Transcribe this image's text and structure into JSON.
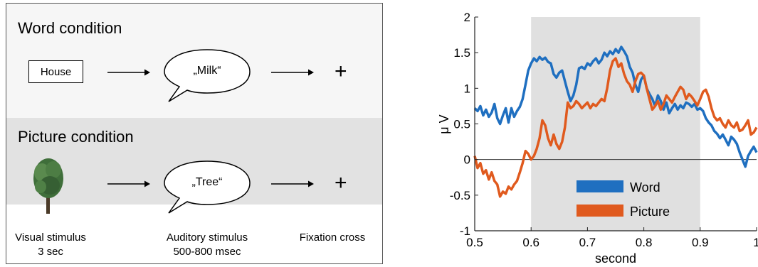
{
  "paradigm": {
    "word_condition": {
      "title": "Word condition",
      "visual_word": "House",
      "auditory_word": "„Milk“",
      "fixation": "+"
    },
    "picture_condition": {
      "title": "Picture condition",
      "picture_icon": "tree-image",
      "auditory_word": "„Tree“",
      "fixation": "+"
    },
    "labels": {
      "visual_line1": "Visual stimulus",
      "visual_line2": "3 sec",
      "auditory_line1": "Auditory stimulus",
      "auditory_line2": "500-800 msec",
      "fixation_line1": "Fixation cross"
    }
  },
  "chart_data": {
    "type": "line",
    "xlabel": "second",
    "ylabel": "μ V",
    "xlim": [
      0.5,
      1.0
    ],
    "ylim": [
      -1,
      2
    ],
    "x_ticks": [
      "0.5",
      "0.6",
      "0.7",
      "0.8",
      "0.9",
      "1"
    ],
    "y_ticks": [
      "-1",
      "-0.5",
      "0",
      "0.5",
      "1",
      "1.5",
      "2"
    ],
    "shaded_region": [
      0.6,
      0.9
    ],
    "shade_color": "#e0e0e0",
    "grid": false,
    "legend_position": "bottom-center",
    "series": [
      {
        "name": "Word",
        "color": "#1f6fc0",
        "x": [
          0.5,
          0.505,
          0.51,
          0.515,
          0.52,
          0.525,
          0.53,
          0.535,
          0.54,
          0.545,
          0.55,
          0.555,
          0.56,
          0.565,
          0.57,
          0.575,
          0.58,
          0.585,
          0.59,
          0.595,
          0.6,
          0.605,
          0.61,
          0.615,
          0.62,
          0.625,
          0.63,
          0.635,
          0.64,
          0.645,
          0.65,
          0.655,
          0.66,
          0.665,
          0.67,
          0.675,
          0.68,
          0.685,
          0.69,
          0.695,
          0.7,
          0.705,
          0.71,
          0.715,
          0.72,
          0.725,
          0.73,
          0.735,
          0.74,
          0.745,
          0.75,
          0.755,
          0.76,
          0.765,
          0.77,
          0.775,
          0.78,
          0.785,
          0.79,
          0.795,
          0.8,
          0.805,
          0.81,
          0.815,
          0.82,
          0.825,
          0.83,
          0.835,
          0.84,
          0.845,
          0.85,
          0.855,
          0.86,
          0.865,
          0.87,
          0.875,
          0.88,
          0.885,
          0.89,
          0.895,
          0.9,
          0.905,
          0.91,
          0.915,
          0.92,
          0.925,
          0.93,
          0.935,
          0.94,
          0.945,
          0.95,
          0.955,
          0.96,
          0.965,
          0.97,
          0.975,
          0.98,
          0.985,
          0.99,
          0.995,
          1.0
        ],
        "values": [
          0.72,
          0.68,
          0.75,
          0.62,
          0.7,
          0.6,
          0.66,
          0.78,
          0.58,
          0.5,
          0.62,
          0.72,
          0.52,
          0.72,
          0.6,
          0.68,
          0.74,
          0.85,
          1.05,
          1.25,
          1.35,
          1.42,
          1.38,
          1.44,
          1.4,
          1.43,
          1.37,
          1.35,
          1.2,
          1.15,
          1.22,
          1.25,
          1.1,
          0.95,
          0.82,
          0.9,
          1.05,
          1.28,
          1.3,
          1.27,
          1.35,
          1.32,
          1.38,
          1.42,
          1.35,
          1.4,
          1.5,
          1.45,
          1.52,
          1.48,
          1.55,
          1.5,
          1.58,
          1.52,
          1.45,
          1.3,
          1.22,
          1.05,
          0.95,
          1.12,
          1.18,
          1.0,
          0.92,
          0.85,
          0.75,
          0.9,
          0.82,
          0.7,
          0.8,
          0.65,
          0.72,
          0.78,
          0.7,
          0.76,
          0.72,
          0.8,
          0.78,
          0.74,
          0.78,
          0.7,
          0.72,
          0.68,
          0.58,
          0.52,
          0.48,
          0.4,
          0.36,
          0.3,
          0.35,
          0.28,
          0.2,
          0.32,
          0.28,
          0.22,
          0.1,
          0.0,
          -0.1,
          0.05,
          0.12,
          0.18,
          0.1
        ]
      },
      {
        "name": "Picture",
        "color": "#e05a1e",
        "x": [
          0.5,
          0.505,
          0.51,
          0.515,
          0.52,
          0.525,
          0.53,
          0.535,
          0.54,
          0.545,
          0.55,
          0.555,
          0.56,
          0.565,
          0.57,
          0.575,
          0.58,
          0.585,
          0.59,
          0.595,
          0.6,
          0.605,
          0.61,
          0.615,
          0.62,
          0.625,
          0.63,
          0.635,
          0.64,
          0.645,
          0.65,
          0.655,
          0.66,
          0.665,
          0.67,
          0.675,
          0.68,
          0.685,
          0.69,
          0.695,
          0.7,
          0.705,
          0.71,
          0.715,
          0.72,
          0.725,
          0.73,
          0.735,
          0.74,
          0.745,
          0.75,
          0.755,
          0.76,
          0.765,
          0.77,
          0.775,
          0.78,
          0.785,
          0.79,
          0.795,
          0.8,
          0.805,
          0.81,
          0.815,
          0.82,
          0.825,
          0.83,
          0.835,
          0.84,
          0.845,
          0.85,
          0.855,
          0.86,
          0.865,
          0.87,
          0.875,
          0.88,
          0.885,
          0.89,
          0.895,
          0.9,
          0.905,
          0.91,
          0.915,
          0.92,
          0.925,
          0.93,
          0.935,
          0.94,
          0.945,
          0.95,
          0.955,
          0.96,
          0.965,
          0.97,
          0.975,
          0.98,
          0.985,
          0.99,
          0.995,
          1.0
        ],
        "values": [
          0.05,
          -0.12,
          -0.05,
          -0.2,
          -0.15,
          -0.28,
          -0.18,
          -0.3,
          -0.35,
          -0.52,
          -0.45,
          -0.48,
          -0.38,
          -0.42,
          -0.35,
          -0.3,
          -0.18,
          -0.05,
          0.12,
          0.08,
          0.0,
          0.05,
          0.15,
          0.3,
          0.55,
          0.48,
          0.3,
          0.2,
          0.35,
          0.22,
          0.15,
          0.25,
          0.45,
          0.8,
          0.72,
          0.75,
          0.82,
          0.78,
          0.72,
          0.76,
          0.8,
          0.72,
          0.78,
          0.75,
          0.8,
          0.85,
          0.82,
          1.0,
          1.25,
          1.38,
          1.42,
          1.3,
          1.35,
          1.2,
          1.1,
          1.05,
          0.95,
          1.1,
          1.2,
          1.22,
          1.18,
          1.0,
          0.85,
          0.7,
          0.75,
          0.82,
          0.7,
          0.78,
          0.9,
          0.85,
          0.8,
          0.88,
          0.95,
          1.02,
          0.98,
          0.85,
          0.92,
          0.88,
          0.82,
          0.76,
          0.85,
          0.95,
          0.98,
          0.88,
          0.72,
          0.6,
          0.55,
          0.58,
          0.5,
          0.45,
          0.55,
          0.48,
          0.45,
          0.52,
          0.4,
          0.42,
          0.48,
          0.55,
          0.35,
          0.38,
          0.45
        ]
      }
    ]
  }
}
